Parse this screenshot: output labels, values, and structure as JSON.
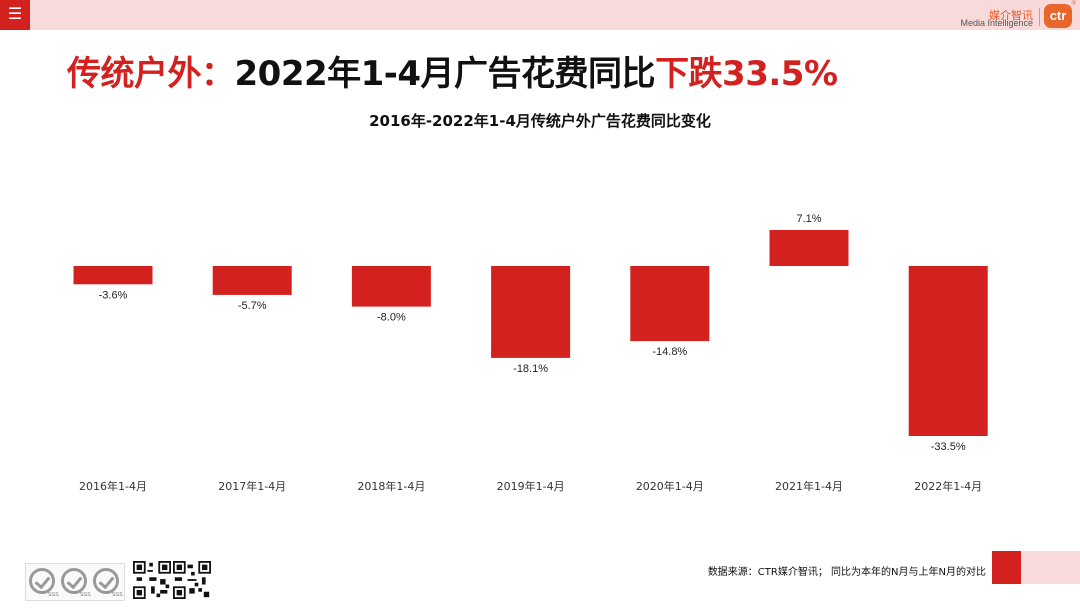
{
  "header": {
    "menu_icon": "menu-icon",
    "brand_cn": "媒介智讯",
    "brand_en": "Media Intelligence",
    "brand_mark": "ctr",
    "brand_reg": "®",
    "accent": "#d2211e",
    "pink": "#f9dada"
  },
  "headline": {
    "prefix": "传统户外：",
    "middle": "2022年1-4月广告花费同比",
    "highlight": "下跌33.5%"
  },
  "chart_data": {
    "type": "bar",
    "title": "2016年-2022年1-4月传统户外广告花费同比变化",
    "categories": [
      "2016年1-4月",
      "2017年1-4月",
      "2018年1-4月",
      "2019年1-4月",
      "2020年1-4月",
      "2021年1-4月",
      "2022年1-4月"
    ],
    "values": [
      -3.6,
      -5.7,
      -8.0,
      -18.1,
      -14.8,
      7.1,
      -33.5
    ],
    "labels": [
      "-3.6%",
      "-5.7%",
      "-8.0%",
      "-18.1%",
      "-14.8%",
      "7.1%",
      "-33.5%"
    ],
    "unit": "%",
    "bar_color": "#d2211e",
    "xlabel": "",
    "ylabel": "",
    "grid": false
  },
  "footer": {
    "source": "数据来源：CTR媒介智讯； 同比为本年的N月与上年N月的对比",
    "badge_text": "SGS",
    "badge_icon": "certification-check-icon",
    "qr_icon": "qr-code-icon"
  }
}
